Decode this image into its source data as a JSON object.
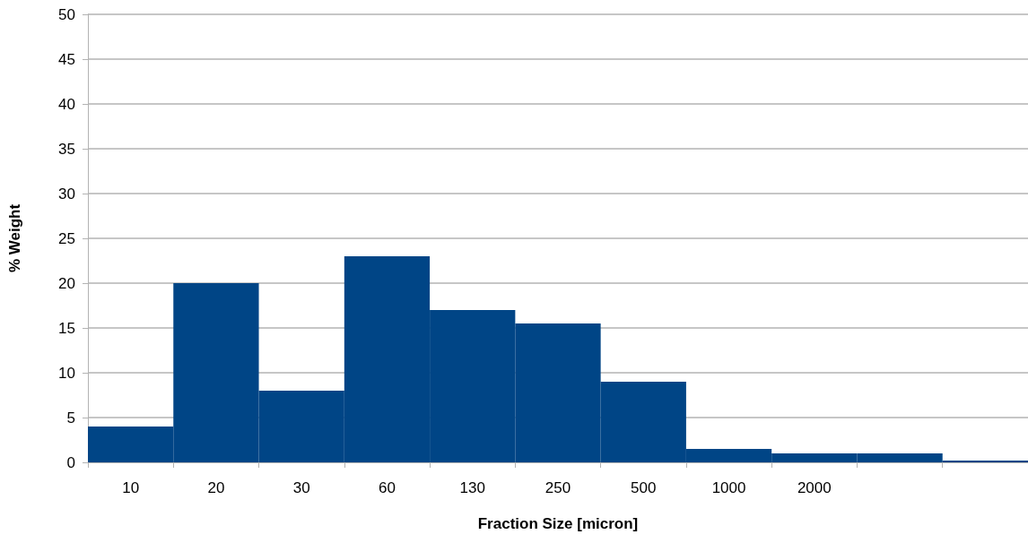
{
  "chart_data": {
    "type": "bar",
    "xlabel": "Fraction Size [micron]",
    "ylabel": "% Weight",
    "categories": [
      "10",
      "20",
      "30",
      "60",
      "130",
      "250",
      "500",
      "1000",
      "2000",
      null,
      null
    ],
    "values": [
      4,
      20,
      8,
      23,
      17,
      15.5,
      9,
      1.5,
      1,
      1,
      0.2
    ],
    "color": "#004586",
    "ylim": [
      0,
      50
    ],
    "yticks": [
      0,
      5,
      10,
      15,
      20,
      25,
      30,
      35,
      40,
      45,
      50
    ],
    "grid": "y"
  }
}
